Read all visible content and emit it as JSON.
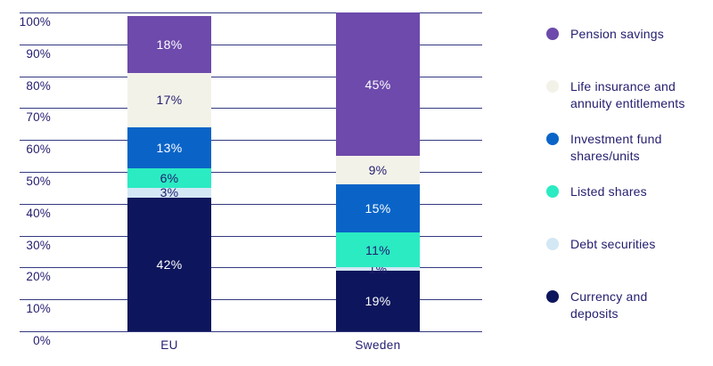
{
  "chart_data": {
    "type": "bar",
    "variant": "stacked-100-percent-column",
    "title": "",
    "xlabel": "",
    "ylabel": "",
    "ylim": [
      0,
      100
    ],
    "grid": true,
    "legend_position": "right",
    "categories": [
      "EU",
      "Sweden"
    ],
    "y_ticks": [
      "100%",
      "90%",
      "80%",
      "70%",
      "60%",
      "50%",
      "40%",
      "30%",
      "20%",
      "10%",
      "0%"
    ],
    "series": [
      {
        "name": "Pension savings",
        "legend_label": "Pension savings",
        "color": "#6d4aab",
        "label_color": "#ffffff",
        "values": [
          18,
          45
        ],
        "data_labels": [
          "18%",
          "45%"
        ]
      },
      {
        "name": "Life insurance and annuity entitlements",
        "legend_label": "Life insurance and\nannuity entitlements",
        "color": "#f3f2e9",
        "label_color": "#221d6e",
        "values": [
          17,
          9
        ],
        "data_labels": [
          "17%",
          "9%"
        ]
      },
      {
        "name": "Investment fund shares/units",
        "legend_label": "Investment fund\nshares/units",
        "color": "#0a64c8",
        "label_color": "#ffffff",
        "values": [
          13,
          15
        ],
        "data_labels": [
          "13%",
          "15%"
        ]
      },
      {
        "name": "Listed shares",
        "legend_label": "Listed shares",
        "color": "#2bebc3",
        "label_color": "#221d6e",
        "values": [
          6,
          11
        ],
        "data_labels": [
          "6%",
          "11%"
        ]
      },
      {
        "name": "Debt securities",
        "legend_label": "Debt securities",
        "color": "#d3e7f4",
        "label_color": "#221d6e",
        "values": [
          3,
          1
        ],
        "data_labels": [
          "3%",
          "1%"
        ]
      },
      {
        "name": "Currency and deposits",
        "legend_label": "Currency and\ndeposits",
        "color": "#0d165c",
        "label_color": "#ffffff",
        "values": [
          42,
          19
        ],
        "data_labels": [
          "42%",
          "19%"
        ]
      }
    ],
    "colors": {
      "text": "#221d6e",
      "gridline": "#333a80",
      "background": "#ffffff"
    }
  }
}
